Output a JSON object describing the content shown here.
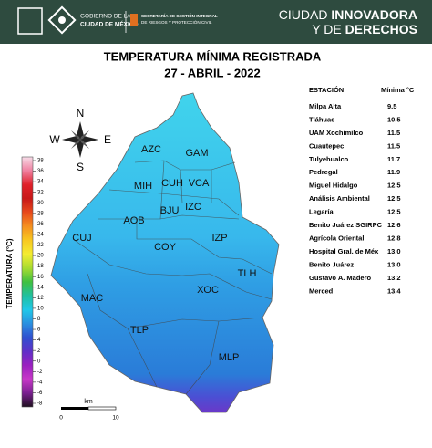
{
  "header": {
    "government": [
      "GOBIERNO DE LA",
      "CIUDAD DE MÉXICO"
    ],
    "agency": [
      "SECRETARÍA DE GESTIÓN INTEGRAL",
      "DE RIESGOS Y PROTECCIÓN CIVIL"
    ],
    "slogan": [
      [
        "CIUDAD ",
        "INNOVADORA"
      ],
      [
        "Y DE ",
        "DERECHOS"
      ]
    ]
  },
  "title": "TEMPERATURA MÍNIMA REGISTRADA",
  "date": "27 - ABRIL - 2022",
  "table": {
    "columns": [
      "ESTACIÓN",
      "Mínima °C"
    ],
    "rows": [
      [
        "Milpa Alta",
        "9.5"
      ],
      [
        "Tláhuac",
        "10.5"
      ],
      [
        "UAM Xochimilco",
        "11.5"
      ],
      [
        "Cuautepec",
        "11.5"
      ],
      [
        "Tulyehualco",
        "11.7"
      ],
      [
        "Pedregal",
        "11.9"
      ],
      [
        "Miguel Hidalgo",
        "12.5"
      ],
      [
        "Análisis Ambiental",
        "12.5"
      ],
      [
        "Legaría",
        "12.5"
      ],
      [
        "Benito Juárez SGIRPC",
        "12.6"
      ],
      [
        "Agrícola Oriental",
        "12.8"
      ],
      [
        "Hospital Gral. de Méx",
        "13.0"
      ],
      [
        "Benito Juárez",
        "13.0"
      ],
      [
        "Gustavo A. Madero",
        "13.2"
      ],
      [
        "Merced",
        "13.4"
      ]
    ]
  },
  "colorbar": {
    "label": "TEMPERATURA (°C)",
    "ticks": [
      38,
      36,
      34,
      32,
      30,
      28,
      26,
      24,
      22,
      20,
      18,
      16,
      14,
      12,
      10,
      8,
      6,
      4,
      2,
      0,
      -2,
      -4,
      -6,
      -8
    ],
    "colors": [
      "#f7dce8",
      "#f080a0",
      "#e0202a",
      "#c81818",
      "#e84a1c",
      "#f59020",
      "#f8c820",
      "#f4ec30",
      "#a8dc30",
      "#40c040",
      "#20c0a0",
      "#20c8e8",
      "#2a90e0",
      "#3050d0",
      "#6030c8",
      "#9a20c0",
      "#c838c8",
      "#7a2090",
      "#201020"
    ]
  },
  "compass": {
    "north": "N",
    "west": "W",
    "east": "E",
    "south": "S"
  },
  "scale": {
    "unit": "km",
    "ticks": [
      0,
      10
    ]
  },
  "boroughs": [
    "AZC",
    "GAM",
    "MIH",
    "CUH",
    "VCA",
    "AOB",
    "BJU",
    "IZC",
    "CUJ",
    "COY",
    "IZP",
    "TLH",
    "MAC",
    "XOC",
    "TLP",
    "MLP"
  ]
}
